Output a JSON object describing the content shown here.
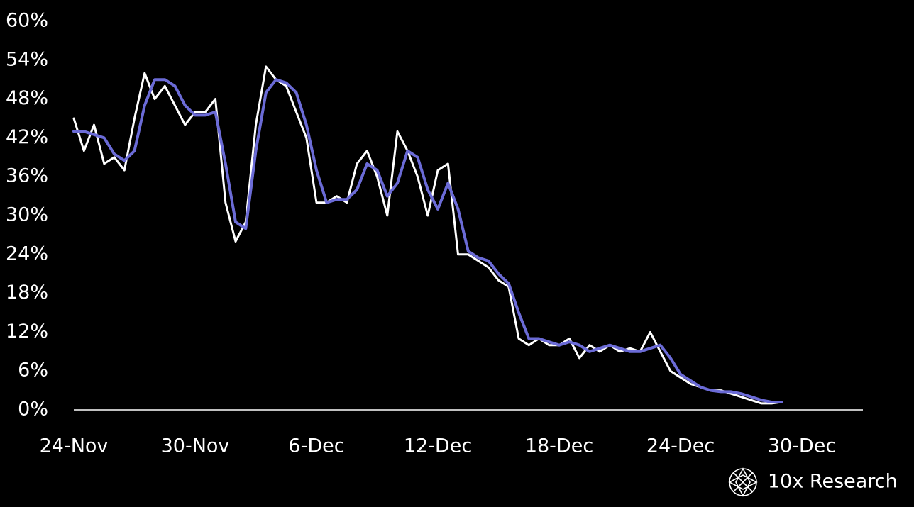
{
  "chart_data": {
    "type": "line",
    "categories": [
      "24-Nov",
      null,
      null,
      null,
      null,
      null,
      null,
      null,
      null,
      null,
      null,
      null,
      "30-Nov",
      null,
      null,
      null,
      null,
      null,
      null,
      null,
      null,
      null,
      null,
      null,
      "6-Dec",
      null,
      null,
      null,
      null,
      null,
      null,
      null,
      null,
      null,
      null,
      null,
      "12-Dec",
      null,
      null,
      null,
      null,
      null,
      null,
      null,
      null,
      null,
      null,
      null,
      "18-Dec",
      null,
      null,
      null,
      null,
      null,
      null,
      null,
      null,
      null,
      null,
      null,
      "24-Dec",
      null,
      null,
      null,
      null,
      null,
      null,
      null,
      null,
      null,
      null,
      null,
      "30-Dec"
    ],
    "series": [
      {
        "color": "#ffffff",
        "values": [
          45,
          40,
          44,
          38,
          39,
          37,
          45,
          52,
          48,
          50,
          47,
          44,
          46,
          46,
          48,
          32,
          26,
          29,
          44,
          53,
          51,
          50,
          46,
          42,
          32,
          32,
          33,
          32,
          38,
          40,
          36,
          30,
          43,
          40,
          36,
          30,
          37,
          38,
          24,
          24,
          23,
          22,
          20,
          19,
          11,
          10,
          11,
          10,
          10,
          11,
          8,
          10,
          9,
          10,
          9,
          9.5,
          9,
          12,
          9,
          6,
          5,
          4,
          3.5,
          3,
          3,
          2.5,
          2,
          1.5,
          1,
          1,
          1.2,
          null,
          null
        ]
      },
      {
        "color": "#6b6bd6",
        "values": [
          43,
          43,
          42.5,
          42,
          39.5,
          38.5,
          40,
          47,
          51,
          51,
          50,
          47,
          45.5,
          45.5,
          46,
          38,
          29,
          28,
          40,
          49,
          51,
          50.5,
          49,
          44,
          37,
          32,
          32.5,
          32.5,
          34,
          38,
          37,
          33,
          35,
          40,
          39,
          34,
          31,
          35,
          31,
          24.5,
          23.5,
          23,
          21,
          19.5,
          15,
          11,
          11,
          10.5,
          10,
          10.5,
          10,
          9,
          9.5,
          10,
          9.5,
          9,
          9,
          9.5,
          10,
          8,
          5.5,
          4.5,
          3.5,
          3,
          2.8,
          2.8,
          2.5,
          2,
          1.5,
          1.2,
          1.2,
          null,
          null
        ]
      }
    ],
    "ylim": [
      0,
      60
    ],
    "yticks": [
      {
        "value": 0,
        "label": "0%"
      },
      {
        "value": 6,
        "label": "6%"
      },
      {
        "value": 12,
        "label": "12%"
      },
      {
        "value": 18,
        "label": "18%"
      },
      {
        "value": 24,
        "label": "24%"
      },
      {
        "value": 30,
        "label": "30%"
      },
      {
        "value": 36,
        "label": "36%"
      },
      {
        "value": 42,
        "label": "42%"
      },
      {
        "value": 48,
        "label": "48%"
      },
      {
        "value": 54,
        "label": "54%"
      },
      {
        "value": 60,
        "label": "60%"
      }
    ],
    "brand": "10x Research"
  }
}
